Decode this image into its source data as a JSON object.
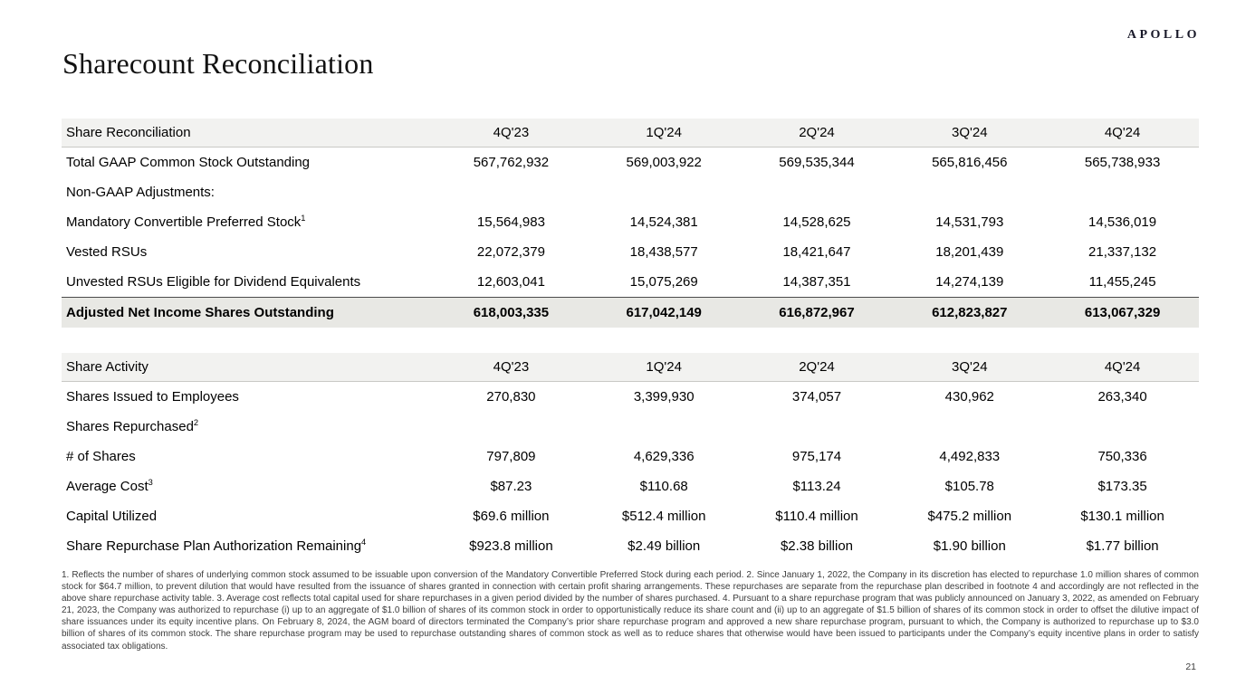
{
  "page": {
    "logo": "APOLLO",
    "title": "Sharecount Reconciliation",
    "page_number": "21"
  },
  "colors": {
    "header_row_bg": "#f2f2f0",
    "total_row_bg": "#e8e8e4",
    "text": "#000000",
    "footnote_text": "#3c3c3c"
  },
  "columns": [
    "4Q'23",
    "1Q'24",
    "2Q'24",
    "3Q'24",
    "4Q'24"
  ],
  "table1": {
    "title": "Share Reconciliation",
    "rows": [
      {
        "label": "Total GAAP Common Stock Outstanding",
        "sup": "",
        "values": [
          "567,762,932",
          "569,003,922",
          "569,535,344",
          "565,816,456",
          "565,738,933"
        ]
      },
      {
        "label": "Non-GAAP Adjustments:",
        "sup": "",
        "values": [
          "",
          "",
          "",
          "",
          ""
        ]
      },
      {
        "label": "Mandatory Convertible Preferred Stock",
        "sup": "1",
        "values": [
          "15,564,983",
          "14,524,381",
          "14,528,625",
          "14,531,793",
          "14,536,019"
        ]
      },
      {
        "label": "Vested RSUs",
        "sup": "",
        "values": [
          "22,072,379",
          "18,438,577",
          "18,421,647",
          "18,201,439",
          "21,337,132"
        ]
      },
      {
        "label": "Unvested RSUs Eligible for Dividend Equivalents",
        "sup": "",
        "values": [
          "12,603,041",
          "15,075,269",
          "14,387,351",
          "14,274,139",
          "11,455,245"
        ]
      },
      {
        "label": "Adjusted Net Income Shares Outstanding",
        "sup": "",
        "values": [
          "618,003,335",
          "617,042,149",
          "616,872,967",
          "612,823,827",
          "613,067,329"
        ]
      }
    ]
  },
  "table2": {
    "title": "Share Activity",
    "rows": [
      {
        "label": "Shares Issued to Employees",
        "sup": "",
        "values": [
          "270,830",
          "3,399,930",
          "374,057",
          "430,962",
          "263,340"
        ]
      },
      {
        "label": "Shares Repurchased",
        "sup": "2",
        "values": [
          "",
          "",
          "",
          "",
          ""
        ]
      },
      {
        "label": "# of Shares",
        "sup": "",
        "values": [
          "797,809",
          "4,629,336",
          "975,174",
          "4,492,833",
          "750,336"
        ]
      },
      {
        "label": "Average Cost",
        "sup": "3",
        "values": [
          "$87.23",
          "$110.68",
          "$113.24",
          "$105.78",
          "$173.35"
        ]
      },
      {
        "label": "Capital Utilized",
        "sup": "",
        "values": [
          "$69.6 million",
          "$512.4 million",
          "$110.4 million",
          "$475.2 million",
          "$130.1 million"
        ]
      },
      {
        "label": "Share Repurchase Plan Authorization Remaining",
        "sup": "4",
        "values": [
          "$923.8 million",
          "$2.49 billion",
          "$2.38 billion",
          "$1.90 billion",
          "$1.77 billion"
        ]
      }
    ]
  },
  "footnotes": "1. Reflects the number of shares of underlying common stock assumed to be issuable upon conversion of the Mandatory Convertible Preferred Stock during each period. 2. Since January 1, 2022, the Company in its discretion has elected to repurchase 1.0 million shares of common stock for $64.7 million, to prevent dilution that would have resulted from the issuance of shares granted in connection with certain profit sharing arrangements. These repurchases are separate from the repurchase plan described in footnote 4 and accordingly are not reflected in the above share repurchase activity table. 3. Average cost reflects total capital used for share repurchases in a given period divided by the number of shares purchased. 4. Pursuant to a share repurchase program that was publicly announced on January 3, 2022, as amended on February 21, 2023, the Company was authorized to repurchase (i) up to an aggregate of $1.0 billion of shares of its common stock in order to opportunistically reduce its share count and (ii) up to an aggregate of $1.5 billion of shares of its common stock in order to offset the dilutive impact of share issuances under its equity incentive plans. On February 8, 2024, the AGM board of directors terminated the Company’s prior share repurchase program and approved a new share repurchase program, pursuant to which, the Company is authorized to repurchase up to $3.0 billion of shares of its common stock. The share repurchase program may be used to repurchase outstanding shares of common stock as well as to reduce shares that otherwise would have been issued to participants under the Company’s equity incentive plans in order to satisfy associated tax obligations."
}
